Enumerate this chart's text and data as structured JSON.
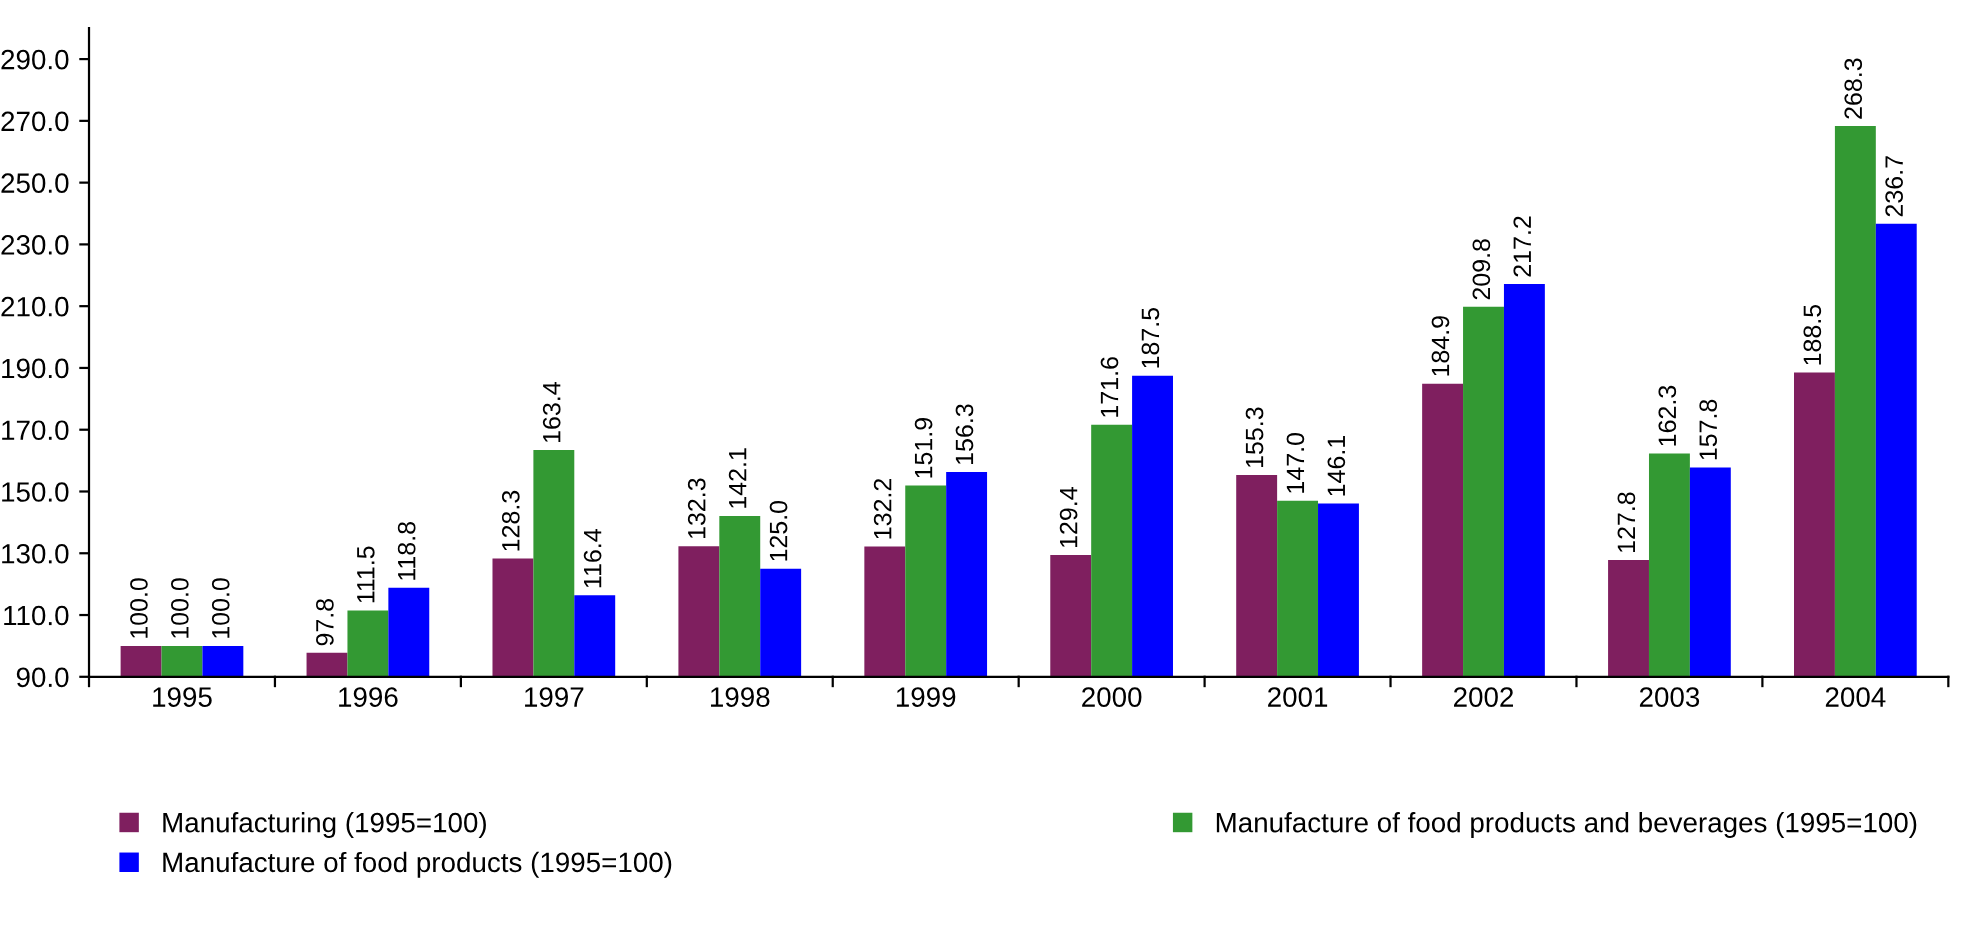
{
  "chart_data": {
    "type": "bar",
    "categories": [
      "1995",
      "1996",
      "1997",
      "1998",
      "1999",
      "2000",
      "2001",
      "2002",
      "2003",
      "2004"
    ],
    "series": [
      {
        "name": "Manufacturing (1995=100)",
        "color": "#7f1f5f",
        "values": [
          100.0,
          97.8,
          128.3,
          132.3,
          132.2,
          129.4,
          155.3,
          184.9,
          127.8,
          188.5
        ],
        "value_labels": [
          "100.0",
          "97.8",
          "128.3",
          "132.3",
          "132.2",
          "129.4",
          "155.3",
          "184.9",
          "127.8",
          "188.5"
        ]
      },
      {
        "name": "Manufacture of food products and beverages (1995=100)",
        "color": "#339933",
        "values": [
          100.0,
          111.5,
          163.4,
          142.1,
          151.9,
          171.6,
          147.0,
          209.8,
          162.3,
          268.3
        ],
        "value_labels": [
          "100.0",
          "111.5",
          "163.4",
          "142.1",
          "151.9",
          "171.6",
          "147.0",
          "209.8",
          "162.3",
          "268.3"
        ]
      },
      {
        "name": "Manufacture of food products (1995=100)",
        "color": "#0000ff",
        "values": [
          100.0,
          118.8,
          116.4,
          125.0,
          156.3,
          187.5,
          146.1,
          217.2,
          157.8,
          236.7
        ],
        "value_labels": [
          "100.0",
          "118.8",
          "116.4",
          "125.0",
          "156.3",
          "187.5",
          "146.1",
          "217.2",
          "157.8",
          "236.7"
        ]
      }
    ],
    "ylim": [
      90,
      300
    ],
    "yticks": [
      {
        "value": 90,
        "label": "90.0"
      },
      {
        "value": 110,
        "label": "110.0"
      },
      {
        "value": 130,
        "label": "130.0"
      },
      {
        "value": 150,
        "label": "150.0"
      },
      {
        "value": 170,
        "label": "170.0"
      },
      {
        "value": 190,
        "label": "190.0"
      },
      {
        "value": 210,
        "label": "210.0"
      },
      {
        "value": 230,
        "label": "230.0"
      },
      {
        "value": 250,
        "label": "250.0"
      },
      {
        "value": 270,
        "label": "270.0"
      },
      {
        "value": 290,
        "label": "290.0"
      }
    ],
    "grid": false,
    "legend": "bottom"
  }
}
